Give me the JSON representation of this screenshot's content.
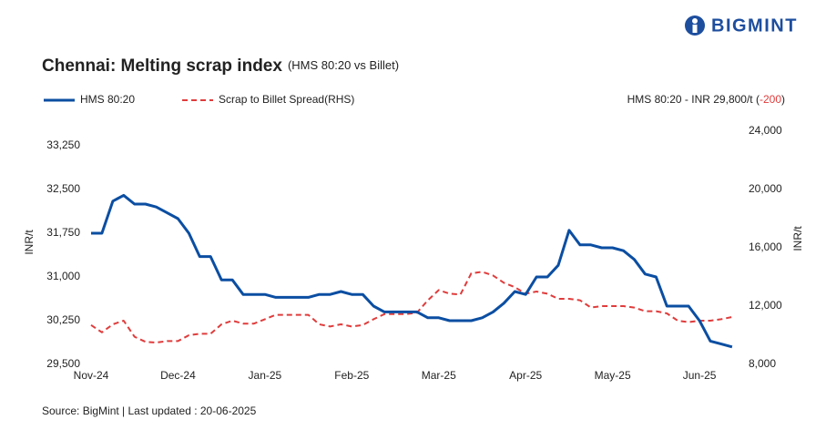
{
  "brand": "BIGMINT",
  "chart_data": {
    "type": "line",
    "title": "Chennai: Melting scrap index",
    "subtitle": "(HMS 80:20 vs Billet)",
    "annotation": {
      "prefix": "HMS 80:20 - INR 29,800/t (",
      "change": "-200",
      "suffix": ")"
    },
    "ylabel": "INR/t",
    "y2label": "INR/t",
    "source": "Source: BigMint | Last updated : 20-06-2025",
    "categories": [
      "Nov-24",
      null,
      null,
      null,
      null,
      null,
      null,
      null,
      "Dec-24",
      null,
      null,
      null,
      null,
      null,
      null,
      null,
      "Jan-25",
      null,
      null,
      null,
      null,
      null,
      null,
      null,
      "Feb-25",
      null,
      null,
      null,
      null,
      null,
      null,
      null,
      "Mar-25",
      null,
      null,
      null,
      null,
      null,
      null,
      null,
      "Apr-25",
      null,
      null,
      null,
      null,
      null,
      null,
      null,
      "May-25",
      null,
      null,
      null,
      null,
      null,
      null,
      null,
      "Jun-25",
      null,
      null,
      null
    ],
    "series": [
      {
        "name": "HMS 80:20",
        "color": "#0b4ea2",
        "axis": "y",
        "values": [
          31750,
          31750,
          32300,
          32400,
          32250,
          32250,
          32200,
          32100,
          32000,
          31750,
          31350,
          31350,
          30950,
          30950,
          30700,
          30700,
          30700,
          30650,
          30650,
          30650,
          30650,
          30700,
          30700,
          30750,
          30700,
          30700,
          30500,
          30400,
          30400,
          30400,
          30400,
          30300,
          30300,
          30250,
          30250,
          30250,
          30300,
          30400,
          30550,
          30750,
          30700,
          31000,
          31000,
          31200,
          31800,
          31550,
          31550,
          31500,
          31500,
          31450,
          31300,
          31050,
          31000,
          30500,
          30500,
          30500,
          30250,
          29900,
          29850,
          29800
        ]
      },
      {
        "name": "Scrap to Billet Spread(RHS)",
        "color": "#e03c3c",
        "axis": "y2",
        "dashed": true,
        "values": [
          10700,
          10200,
          10750,
          11000,
          9900,
          9550,
          9500,
          9600,
          9600,
          10000,
          10100,
          10100,
          10750,
          11000,
          10800,
          10800,
          11100,
          11400,
          11400,
          11400,
          11400,
          10750,
          10600,
          10750,
          10600,
          10700,
          11100,
          11450,
          11450,
          11450,
          11550,
          12400,
          13100,
          12850,
          12800,
          14250,
          14350,
          14100,
          13600,
          13300,
          12850,
          13000,
          12850,
          12500,
          12500,
          12400,
          11900,
          12000,
          12000,
          12000,
          11900,
          11650,
          11650,
          11500,
          11000,
          10900,
          11000,
          11000,
          11100,
          11250
        ]
      }
    ],
    "ylim": [
      29500,
      33500
    ],
    "yticks": [
      {
        "value": 29500,
        "label": "29,500"
      },
      {
        "value": 30250,
        "label": "30,250"
      },
      {
        "value": 31000,
        "label": "31,000"
      },
      {
        "value": 31750,
        "label": "31,750"
      },
      {
        "value": 32500,
        "label": "32,500"
      },
      {
        "value": 33250,
        "label": "33,250"
      }
    ],
    "y2lim": [
      8000,
      24000
    ],
    "y2ticks": [
      {
        "value": 8000,
        "label": "8,000"
      },
      {
        "value": 12000,
        "label": "12,000"
      },
      {
        "value": 16000,
        "label": "16,000"
      },
      {
        "value": 20000,
        "label": "20,000"
      },
      {
        "value": 24000,
        "label": "24,000"
      }
    ],
    "grid": false
  }
}
